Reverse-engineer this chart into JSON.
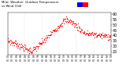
{
  "bg_color": "#ffffff",
  "plot_bg": "#ffffff",
  "temp_color": "#ff0000",
  "ylim": [
    22,
    62
  ],
  "ytick_positions": [
    25,
    30,
    35,
    40,
    45,
    50,
    55,
    60
  ],
  "ytick_labels": [
    "25",
    "30",
    "35",
    "40",
    "45",
    "50",
    "55",
    "60"
  ],
  "font_size": 3.5,
  "marker_size": 0.8,
  "colorbar_blue": "#0000ff",
  "colorbar_red": "#ff0000",
  "num_points": 288,
  "title_line1": "Milw   Temperature   vs   Wind Chill",
  "title_line2": "vs Wind Chill"
}
